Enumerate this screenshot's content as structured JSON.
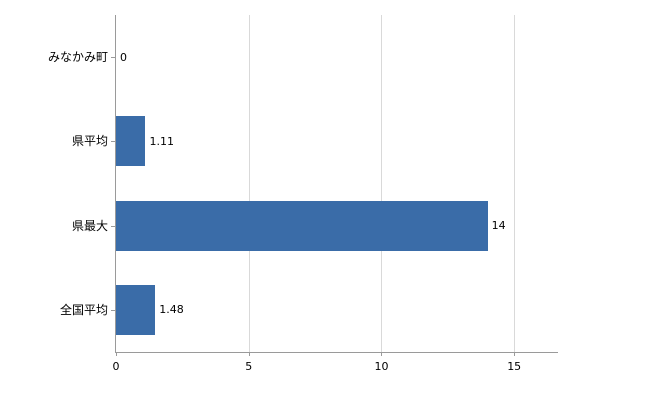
{
  "chart_data": {
    "type": "bar",
    "orientation": "horizontal",
    "title": "",
    "categories": [
      "みなかみ町",
      "県平均",
      "県最大",
      "全国平均"
    ],
    "values": [
      0,
      1.11,
      14,
      1.48
    ],
    "value_labels": [
      "0",
      "1.11",
      "14",
      "1.48"
    ],
    "xlabel": "",
    "ylabel": "",
    "xlim": [
      0,
      16.65
    ],
    "xticks": [
      0,
      5,
      10,
      15
    ],
    "xtick_labels": [
      "0",
      "5",
      "10",
      "15"
    ],
    "grid": true,
    "legend": "none",
    "bar_color": "#3a6ca8",
    "gridline_color": "#d9d9d9",
    "axis_color": "#9a9a9a"
  }
}
